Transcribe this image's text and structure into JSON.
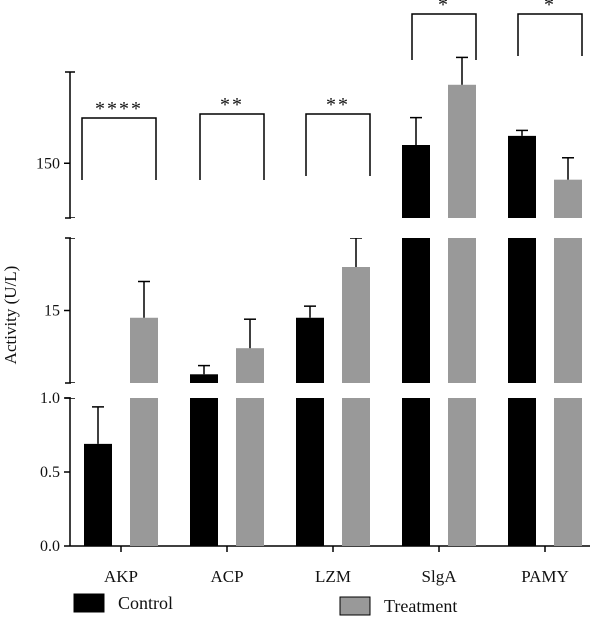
{
  "chart_data": {
    "type": "bar",
    "ylabel": "Activity (U/L)",
    "categories": [
      "AKP",
      "ACP",
      "LZM",
      "SlgA",
      "PAMY"
    ],
    "series": [
      {
        "name": "Control",
        "color": "#000000",
        "values": [
          0.69,
          10.6,
          14.5,
          160,
          165
        ],
        "errors": [
          0.25,
          0.6,
          0.8,
          15,
          3
        ]
      },
      {
        "name": "Treatment",
        "color": "#999999",
        "values": [
          14.5,
          12.4,
          18.0,
          193,
          141
        ],
        "errors": [
          2.5,
          2.0,
          4.5,
          15,
          12
        ]
      }
    ],
    "segments": [
      {
        "range": [
          0,
          1.0
        ],
        "ticks": [
          0,
          0.5,
          1.0
        ],
        "tick_labels": [
          "0.0",
          "0.5",
          "1.0"
        ]
      },
      {
        "range": [
          10,
          20
        ],
        "ticks": [
          15
        ],
        "tick_labels": [
          "15"
        ]
      },
      {
        "range": [
          120,
          200
        ],
        "ticks": [
          150
        ],
        "tick_labels": [
          "150"
        ]
      }
    ],
    "significance": [
      {
        "category": "AKP",
        "label": "****"
      },
      {
        "category": "ACP",
        "label": "**"
      },
      {
        "category": "LZM",
        "label": "**"
      },
      {
        "category": "SlgA",
        "label": "*"
      },
      {
        "category": "PAMY",
        "label": "*"
      }
    ],
    "legend": {
      "placement": "bottom"
    }
  }
}
